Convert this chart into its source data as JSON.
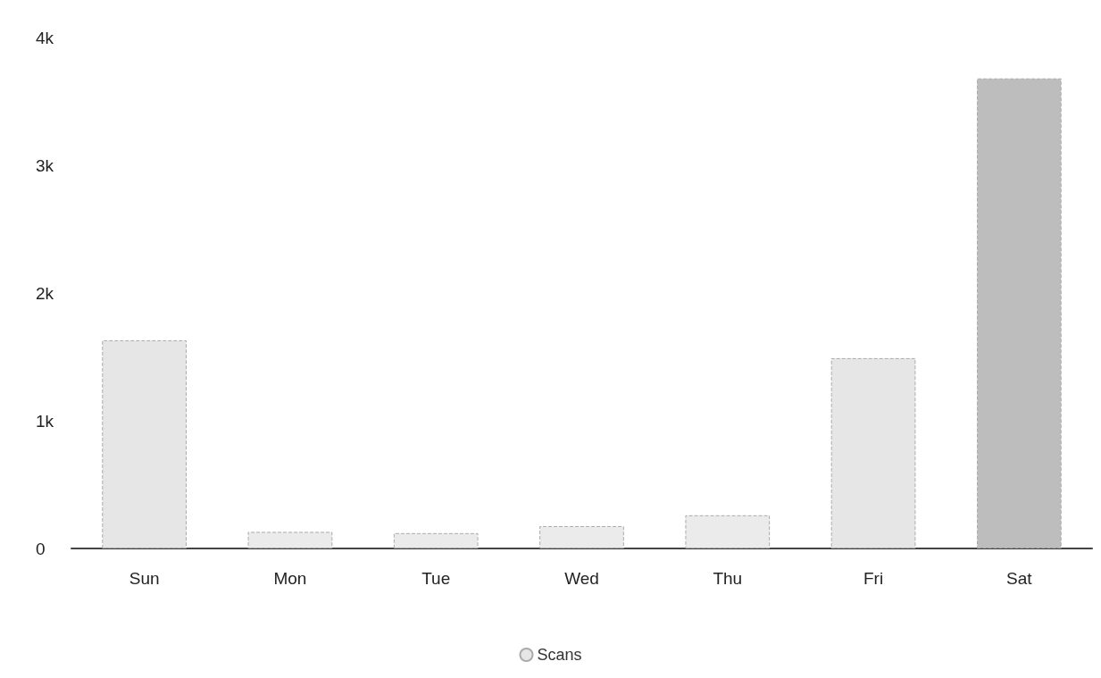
{
  "chart_data": {
    "type": "bar",
    "categories": [
      "Sun",
      "Mon",
      "Tue",
      "Wed",
      "Thu",
      "Fri",
      "Sat"
    ],
    "series": [
      {
        "name": "Scans",
        "color": "#e6e6e6",
        "colors": [
          "#e6e6e6",
          "#ebebeb",
          "#ebebeb",
          "#ebebeb",
          "#ebebeb",
          "#e6e6e6",
          "#bdbdbd"
        ],
        "values": [
          1630,
          130,
          120,
          175,
          260,
          1490,
          3680
        ]
      }
    ],
    "ylim": [
      0,
      4000
    ],
    "yticks": [
      {
        "value": 0,
        "label": "0"
      },
      {
        "value": 1000,
        "label": "1k"
      },
      {
        "value": 2000,
        "label": "2k"
      },
      {
        "value": 3000,
        "label": "3k"
      },
      {
        "value": 4000,
        "label": "4k"
      }
    ],
    "grid": false,
    "legend": "bottom"
  }
}
